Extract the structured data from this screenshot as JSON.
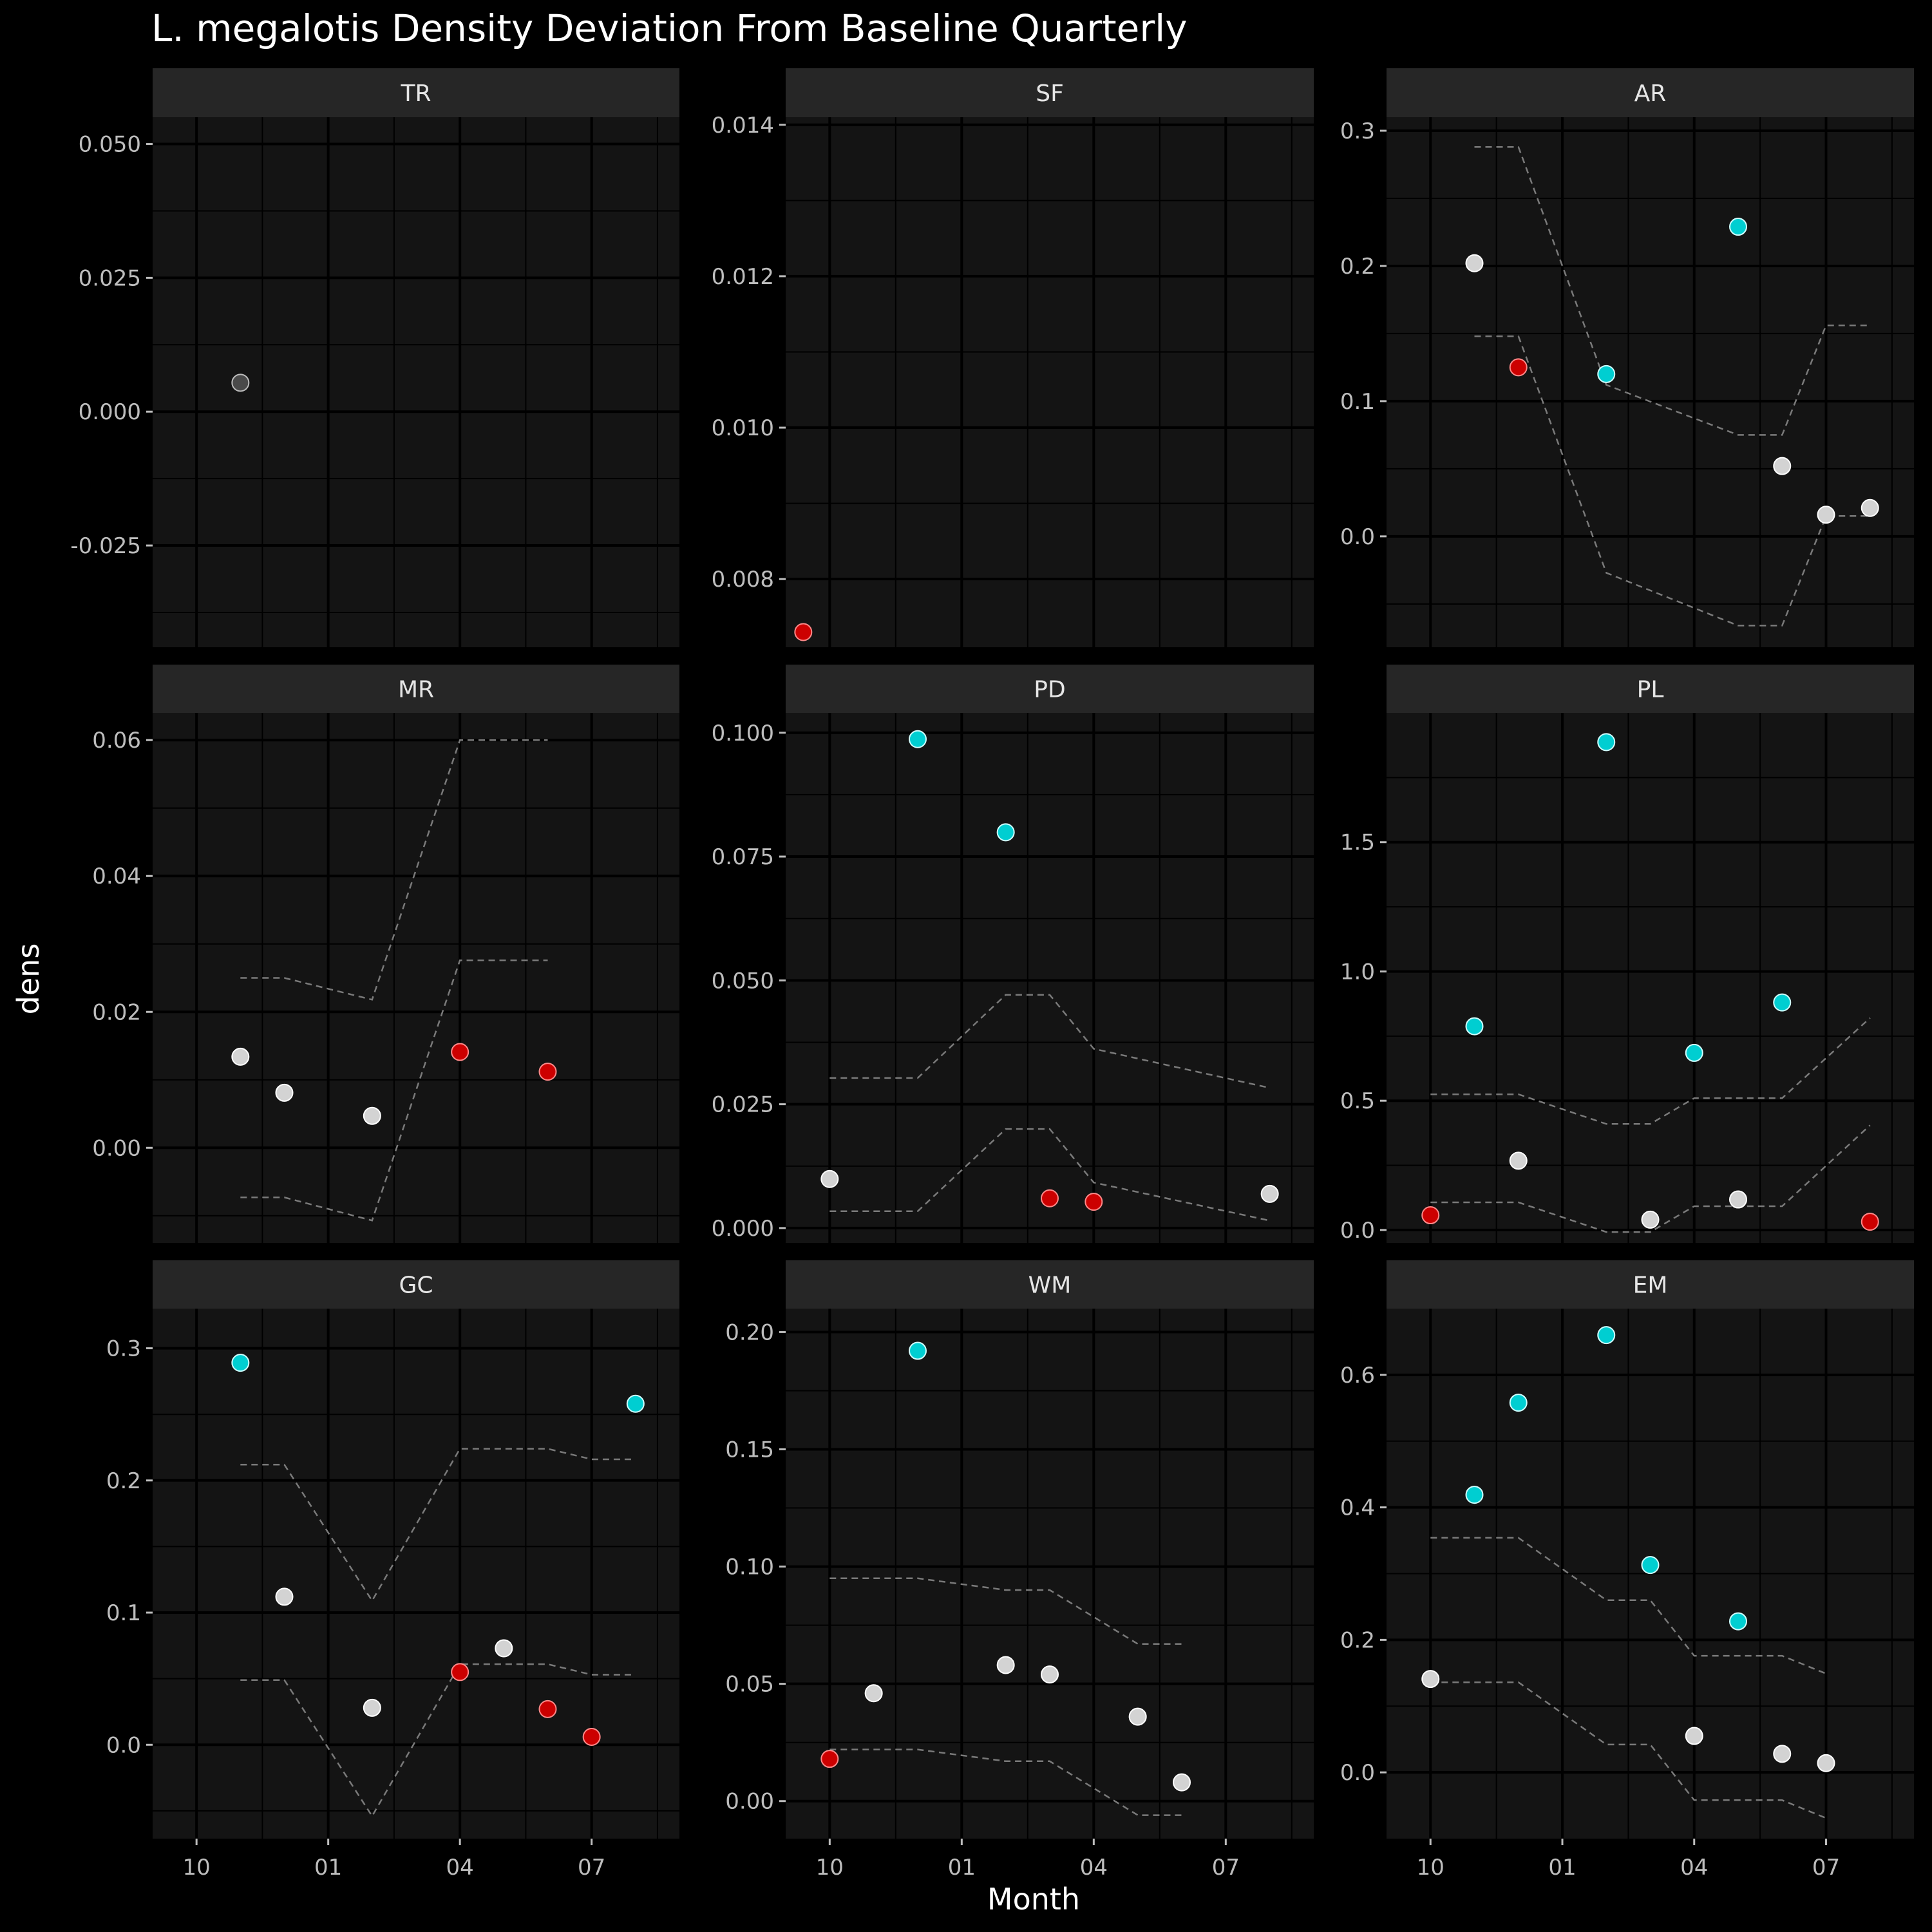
{
  "chart_data": {
    "type": "scatter",
    "title": "L. megalotis Density Deviation From Baseline Quarterly",
    "xlabel": "Month",
    "ylabel": "dens",
    "x_tick_labels": [
      "10",
      "01",
      "04",
      "07"
    ],
    "x_tick_values": [
      10,
      13,
      16,
      19
    ],
    "x_range": [
      9,
      21
    ],
    "grid": true,
    "colors": {
      "above": "#00CED1",
      "within": "#D3D3D3",
      "below": "#CC0000",
      "band": "#7a7a7a",
      "panel_bg": "#141414",
      "strip_bg": "#262626",
      "background": "#000000"
    },
    "panels": [
      {
        "name": "TR",
        "ylim": [
          -0.044,
          0.055
        ],
        "y_ticks": [
          -0.025,
          0.0,
          0.025,
          0.05
        ],
        "y_tick_labels": [
          "-0.025",
          "0.000",
          "0.025",
          "0.050"
        ],
        "points": [
          {
            "x": 11,
            "y": 0.0054,
            "status": "dark"
          }
        ],
        "band_upper": [],
        "band_lower": []
      },
      {
        "name": "SF",
        "ylim": [
          0.0071,
          0.0141
        ],
        "y_ticks": [
          0.008,
          0.01,
          0.012,
          0.014
        ],
        "y_tick_labels": [
          "0.008",
          "0.010",
          "0.012",
          "0.014"
        ],
        "points": [
          {
            "x": 9.4,
            "y": 0.0073,
            "status": "below"
          }
        ],
        "band_upper": [],
        "band_lower": []
      },
      {
        "name": "AR",
        "ylim": [
          -0.082,
          0.31
        ],
        "y_ticks": [
          0.0,
          0.1,
          0.2,
          0.3
        ],
        "y_tick_labels": [
          "0.0",
          "0.1",
          "0.2",
          "0.3"
        ],
        "points": [
          {
            "x": 11,
            "y": 0.202,
            "status": "within"
          },
          {
            "x": 12,
            "y": 0.125,
            "status": "below"
          },
          {
            "x": 14,
            "y": 0.12,
            "status": "above"
          },
          {
            "x": 17,
            "y": 0.229,
            "status": "above"
          },
          {
            "x": 18,
            "y": 0.052,
            "status": "within"
          },
          {
            "x": 19,
            "y": 0.016,
            "status": "within"
          },
          {
            "x": 20,
            "y": 0.021,
            "status": "within"
          }
        ],
        "band_upper": [
          [
            11,
            0.288
          ],
          [
            12,
            0.288
          ],
          [
            14,
            0.112
          ],
          [
            17,
            0.075
          ],
          [
            18,
            0.075
          ],
          [
            19,
            0.156
          ],
          [
            20,
            0.156
          ]
        ],
        "band_lower": [
          [
            11,
            0.148
          ],
          [
            12,
            0.148
          ],
          [
            14,
            -0.027
          ],
          [
            17,
            -0.066
          ],
          [
            18,
            -0.066
          ],
          [
            19,
            0.015
          ],
          [
            20,
            0.015
          ]
        ]
      },
      {
        "name": "MR",
        "ylim": [
          -0.014,
          0.064
        ],
        "y_ticks": [
          0.0,
          0.02,
          0.04,
          0.06
        ],
        "y_tick_labels": [
          "0.00",
          "0.02",
          "0.04",
          "0.06"
        ],
        "points": [
          {
            "x": 11,
            "y": 0.0134,
            "status": "within"
          },
          {
            "x": 12,
            "y": 0.0081,
            "status": "within"
          },
          {
            "x": 14,
            "y": 0.0047,
            "status": "within"
          },
          {
            "x": 16,
            "y": 0.0141,
            "status": "below"
          },
          {
            "x": 18,
            "y": 0.0112,
            "status": "below"
          }
        ],
        "band_upper": [
          [
            11,
            0.025
          ],
          [
            12,
            0.025
          ],
          [
            14,
            0.0218
          ],
          [
            16,
            0.06
          ],
          [
            18,
            0.06
          ]
        ],
        "band_lower": [
          [
            11,
            -0.0073
          ],
          [
            12,
            -0.0073
          ],
          [
            14,
            -0.0107
          ],
          [
            16,
            0.0276
          ],
          [
            18,
            0.0276
          ]
        ]
      },
      {
        "name": "PD",
        "ylim": [
          -0.003,
          0.104
        ],
        "y_ticks": [
          0.0,
          0.025,
          0.05,
          0.075,
          0.1
        ],
        "y_tick_labels": [
          "0.000",
          "0.025",
          "0.050",
          "0.075",
          "0.100"
        ],
        "points": [
          {
            "x": 10,
            "y": 0.0099,
            "status": "within"
          },
          {
            "x": 12,
            "y": 0.0987,
            "status": "above"
          },
          {
            "x": 14,
            "y": 0.0799,
            "status": "above"
          },
          {
            "x": 15,
            "y": 0.006,
            "status": "below"
          },
          {
            "x": 16,
            "y": 0.0053,
            "status": "below"
          },
          {
            "x": 20,
            "y": 0.0069,
            "status": "within"
          }
        ],
        "band_upper": [
          [
            10,
            0.0303
          ],
          [
            12,
            0.0303
          ],
          [
            14,
            0.0471
          ],
          [
            15,
            0.0471
          ],
          [
            16,
            0.0362
          ],
          [
            20,
            0.0283
          ]
        ],
        "band_lower": [
          [
            10,
            0.0034
          ],
          [
            12,
            0.0034
          ],
          [
            14,
            0.02
          ],
          [
            15,
            0.02
          ],
          [
            16,
            0.0092
          ],
          [
            20,
            0.0015
          ]
        ]
      },
      {
        "name": "PL",
        "ylim": [
          -0.05,
          2.0
        ],
        "y_ticks": [
          0.0,
          0.5,
          1.0,
          1.5
        ],
        "y_tick_labels": [
          "0.0",
          "0.5",
          "1.0",
          "1.5"
        ],
        "points": [
          {
            "x": 10,
            "y": 0.057,
            "status": "below"
          },
          {
            "x": 11,
            "y": 0.788,
            "status": "above"
          },
          {
            "x": 12,
            "y": 0.268,
            "status": "within"
          },
          {
            "x": 14,
            "y": 1.887,
            "status": "above"
          },
          {
            "x": 15,
            "y": 0.04,
            "status": "within"
          },
          {
            "x": 16,
            "y": 0.685,
            "status": "above"
          },
          {
            "x": 17,
            "y": 0.118,
            "status": "within"
          },
          {
            "x": 18,
            "y": 0.88,
            "status": "above"
          },
          {
            "x": 20,
            "y": 0.032,
            "status": "below"
          }
        ],
        "band_upper": [
          [
            10,
            0.525
          ],
          [
            12,
            0.525
          ],
          [
            14,
            0.41
          ],
          [
            15,
            0.41
          ],
          [
            16,
            0.51
          ],
          [
            18,
            0.51
          ],
          [
            20,
            0.82
          ]
        ],
        "band_lower": [
          [
            10,
            0.107
          ],
          [
            12,
            0.107
          ],
          [
            14,
            -0.008
          ],
          [
            15,
            -0.008
          ],
          [
            16,
            0.092
          ],
          [
            18,
            0.092
          ],
          [
            20,
            0.405
          ]
        ]
      },
      {
        "name": "GC",
        "ylim": [
          -0.071,
          0.33
        ],
        "y_ticks": [
          0.0,
          0.1,
          0.2,
          0.3
        ],
        "y_tick_labels": [
          "0.0",
          "0.1",
          "0.2",
          "0.3"
        ],
        "points": [
          {
            "x": 11,
            "y": 0.289,
            "status": "above"
          },
          {
            "x": 12,
            "y": 0.112,
            "status": "within"
          },
          {
            "x": 14,
            "y": 0.028,
            "status": "within"
          },
          {
            "x": 16,
            "y": 0.055,
            "status": "below"
          },
          {
            "x": 17,
            "y": 0.073,
            "status": "within"
          },
          {
            "x": 18,
            "y": 0.027,
            "status": "below"
          },
          {
            "x": 19,
            "y": 0.006,
            "status": "below"
          },
          {
            "x": 20,
            "y": 0.258,
            "status": "above"
          }
        ],
        "band_upper": [
          [
            11,
            0.212
          ],
          [
            12,
            0.212
          ],
          [
            14,
            0.109
          ],
          [
            16,
            0.224
          ],
          [
            18,
            0.224
          ],
          [
            19,
            0.216
          ],
          [
            20,
            0.216
          ]
        ],
        "band_lower": [
          [
            11,
            0.049
          ],
          [
            12,
            0.049
          ],
          [
            14,
            -0.054
          ],
          [
            16,
            0.061
          ],
          [
            18,
            0.061
          ],
          [
            19,
            0.053
          ],
          [
            20,
            0.053
          ]
        ]
      },
      {
        "name": "WM",
        "ylim": [
          -0.016,
          0.21
        ],
        "y_ticks": [
          0.0,
          0.05,
          0.1,
          0.15,
          0.2
        ],
        "y_tick_labels": [
          "0.00",
          "0.05",
          "0.10",
          "0.15",
          "0.20"
        ],
        "points": [
          {
            "x": 10,
            "y": 0.018,
            "status": "below"
          },
          {
            "x": 11,
            "y": 0.046,
            "status": "within"
          },
          {
            "x": 12,
            "y": 0.192,
            "status": "above"
          },
          {
            "x": 14,
            "y": 0.058,
            "status": "within"
          },
          {
            "x": 15,
            "y": 0.054,
            "status": "within"
          },
          {
            "x": 17,
            "y": 0.036,
            "status": "within"
          },
          {
            "x": 18,
            "y": 0.008,
            "status": "within"
          }
        ],
        "band_upper": [
          [
            10,
            0.095
          ],
          [
            12,
            0.095
          ],
          [
            14,
            0.09
          ],
          [
            15,
            0.09
          ],
          [
            17,
            0.067
          ],
          [
            18,
            0.067
          ]
        ],
        "band_lower": [
          [
            10,
            0.022
          ],
          [
            12,
            0.022
          ],
          [
            14,
            0.017
          ],
          [
            15,
            0.017
          ],
          [
            17,
            -0.006
          ],
          [
            18,
            -0.006
          ]
        ]
      },
      {
        "name": "EM",
        "ylim": [
          -0.1,
          0.7
        ],
        "y_ticks": [
          0.0,
          0.2,
          0.4,
          0.6
        ],
        "y_tick_labels": [
          "0.0",
          "0.2",
          "0.4",
          "0.6"
        ],
        "points": [
          {
            "x": 10,
            "y": 0.141,
            "status": "within"
          },
          {
            "x": 11,
            "y": 0.419,
            "status": "above"
          },
          {
            "x": 12,
            "y": 0.558,
            "status": "above"
          },
          {
            "x": 14,
            "y": 0.66,
            "status": "above"
          },
          {
            "x": 15,
            "y": 0.313,
            "status": "above"
          },
          {
            "x": 16,
            "y": 0.055,
            "status": "within"
          },
          {
            "x": 17,
            "y": 0.228,
            "status": "above"
          },
          {
            "x": 18,
            "y": 0.028,
            "status": "within"
          },
          {
            "x": 19,
            "y": 0.014,
            "status": "within"
          }
        ],
        "band_upper": [
          [
            10,
            0.354
          ],
          [
            12,
            0.354
          ],
          [
            14,
            0.26
          ],
          [
            15,
            0.26
          ],
          [
            16,
            0.176
          ],
          [
            18,
            0.176
          ],
          [
            19,
            0.149
          ]
        ],
        "band_lower": [
          [
            10,
            0.136
          ],
          [
            12,
            0.136
          ],
          [
            14,
            0.042
          ],
          [
            15,
            0.042
          ],
          [
            16,
            -0.042
          ],
          [
            18,
            -0.042
          ],
          [
            19,
            -0.069
          ]
        ]
      }
    ]
  }
}
